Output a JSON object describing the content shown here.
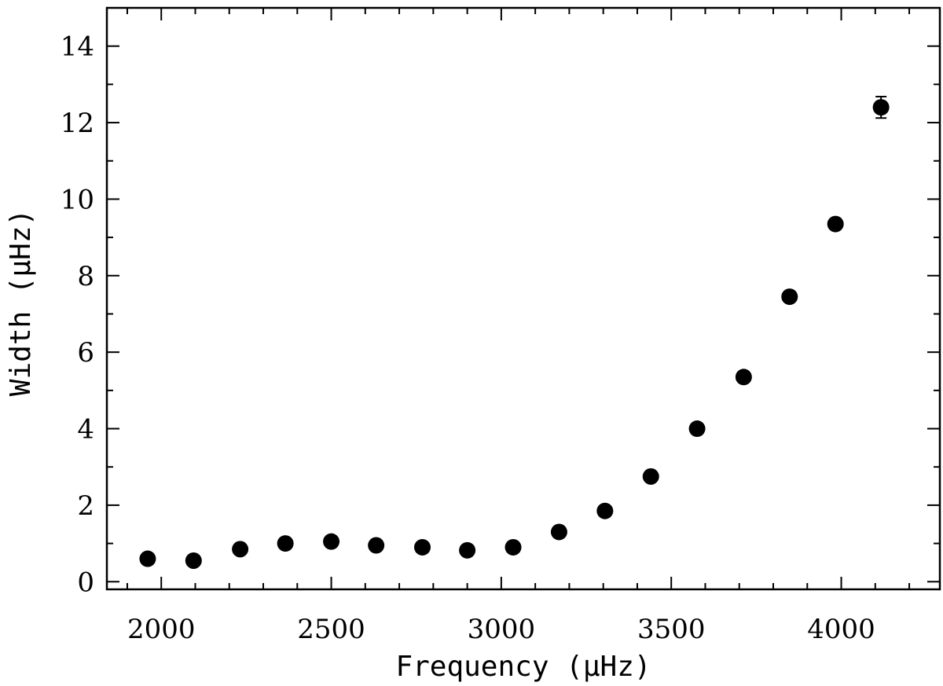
{
  "chart_data": {
    "type": "scatter",
    "xlabel": "Frequency (μHz)",
    "ylabel": "Width (μHz)",
    "xlim": [
      1840,
      4290
    ],
    "ylim": [
      -0.2,
      15.0
    ],
    "x_ticks": [
      2000,
      2500,
      3000,
      3500,
      4000
    ],
    "y_ticks": [
      0,
      2,
      4,
      6,
      8,
      10,
      12,
      14
    ],
    "grid": false,
    "marker_color": "#000000",
    "series": [
      {
        "points": [
          {
            "x": 1960,
            "y": 0.6
          },
          {
            "x": 2095,
            "y": 0.55
          },
          {
            "x": 2232,
            "y": 0.85
          },
          {
            "x": 2365,
            "y": 1.0
          },
          {
            "x": 2500,
            "y": 1.05
          },
          {
            "x": 2632,
            "y": 0.95
          },
          {
            "x": 2768,
            "y": 0.9
          },
          {
            "x": 2900,
            "y": 0.82
          },
          {
            "x": 3035,
            "y": 0.9
          },
          {
            "x": 3170,
            "y": 1.3
          },
          {
            "x": 3305,
            "y": 1.85
          },
          {
            "x": 3440,
            "y": 2.75
          },
          {
            "x": 3576,
            "y": 4.0
          },
          {
            "x": 3713,
            "y": 5.35
          },
          {
            "x": 3848,
            "y": 7.45
          },
          {
            "x": 3983,
            "y": 9.35
          },
          {
            "x": 4117,
            "y": 12.4,
            "err": 0.28
          }
        ]
      }
    ]
  }
}
